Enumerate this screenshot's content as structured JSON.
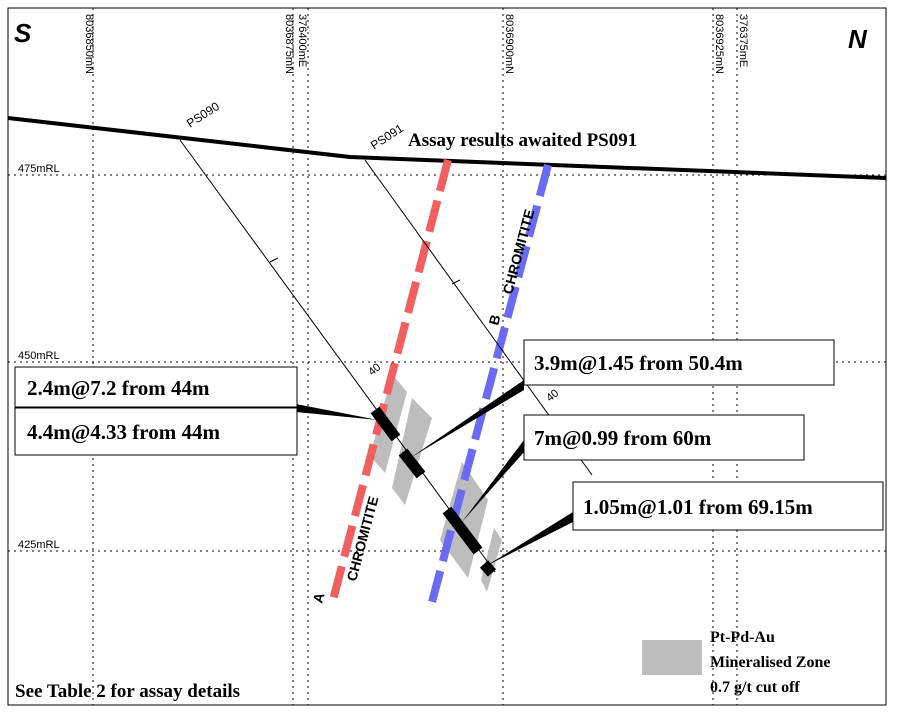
{
  "corners": {
    "left": "S",
    "right": "N"
  },
  "grid_labels": [
    "8036850mN",
    "8036875mN",
    "376400mE",
    "8036900mN",
    "8036925mN",
    "376375mE"
  ],
  "rl_labels": [
    "475mRL",
    "450mRL",
    "425mRL"
  ],
  "holes": [
    "PS090",
    "PS091"
  ],
  "note": "Assay results awaited PS091",
  "units": [
    {
      "name": "CHROMITITE",
      "letter": "A"
    },
    {
      "name": "CHROMITITE",
      "letter": "B"
    }
  ],
  "depth_labels": [
    "40",
    "40"
  ],
  "intercepts": [
    "2.4m@7.2 from 44m",
    "4.4m@4.33 from 44m",
    "3.9m@1.45 from 50.4m",
    "7m@0.99 from 60m",
    "1.05m@1.01 from 69.15m"
  ],
  "legend": [
    "Pt-Pd-Au",
    "Mineralised Zone",
    "0.7 g/t cut off"
  ],
  "footer": "See Table 2 for assay details"
}
